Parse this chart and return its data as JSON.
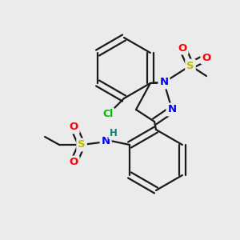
{
  "background_color": "#ebebeb",
  "bond_color": "#1a1a1a",
  "bond_lw": 1.6,
  "atom_colors": {
    "N": "#0000ff",
    "O": "#ff0000",
    "S": "#bbbb00",
    "Cl": "#00bb00",
    "H": "#008080",
    "C": "#1a1a1a"
  },
  "fs": 9.5,
  "figsize": [
    3.0,
    3.0
  ],
  "dpi": 100
}
